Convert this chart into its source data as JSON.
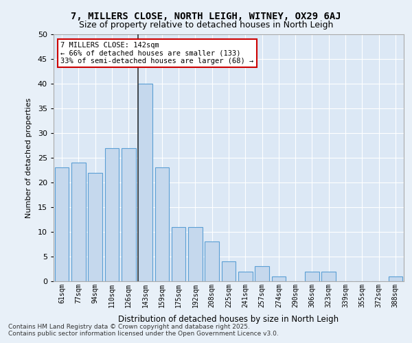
{
  "title1": "7, MILLERS CLOSE, NORTH LEIGH, WITNEY, OX29 6AJ",
  "title2": "Size of property relative to detached houses in North Leigh",
  "xlabel": "Distribution of detached houses by size in North Leigh",
  "ylabel": "Number of detached properties",
  "categories": [
    "61sqm",
    "77sqm",
    "94sqm",
    "110sqm",
    "126sqm",
    "143sqm",
    "159sqm",
    "175sqm",
    "192sqm",
    "208sqm",
    "225sqm",
    "241sqm",
    "257sqm",
    "274sqm",
    "290sqm",
    "306sqm",
    "323sqm",
    "339sqm",
    "355sqm",
    "372sqm",
    "388sqm"
  ],
  "values": [
    23,
    24,
    22,
    27,
    27,
    40,
    23,
    11,
    11,
    8,
    4,
    2,
    3,
    1,
    0,
    2,
    2,
    0,
    0,
    0,
    1
  ],
  "bar_color": "#c5d8ed",
  "bar_edge_color": "#5a9fd4",
  "highlight_index": 5,
  "vline_x": 5,
  "annotation_title": "7 MILLERS CLOSE: 142sqm",
  "annotation_line1": "← 66% of detached houses are smaller (133)",
  "annotation_line2": "33% of semi-detached houses are larger (68) →",
  "annotation_box_color": "#ffffff",
  "annotation_box_edge": "#cc0000",
  "vline_color": "#333333",
  "footer1": "Contains HM Land Registry data © Crown copyright and database right 2025.",
  "footer2": "Contains public sector information licensed under the Open Government Licence v3.0.",
  "bg_color": "#e8f0f8",
  "plot_bg_color": "#dce8f5",
  "grid_color": "#ffffff",
  "ylim": [
    0,
    50
  ],
  "yticks": [
    0,
    5,
    10,
    15,
    20,
    25,
    30,
    35,
    40,
    45,
    50
  ]
}
